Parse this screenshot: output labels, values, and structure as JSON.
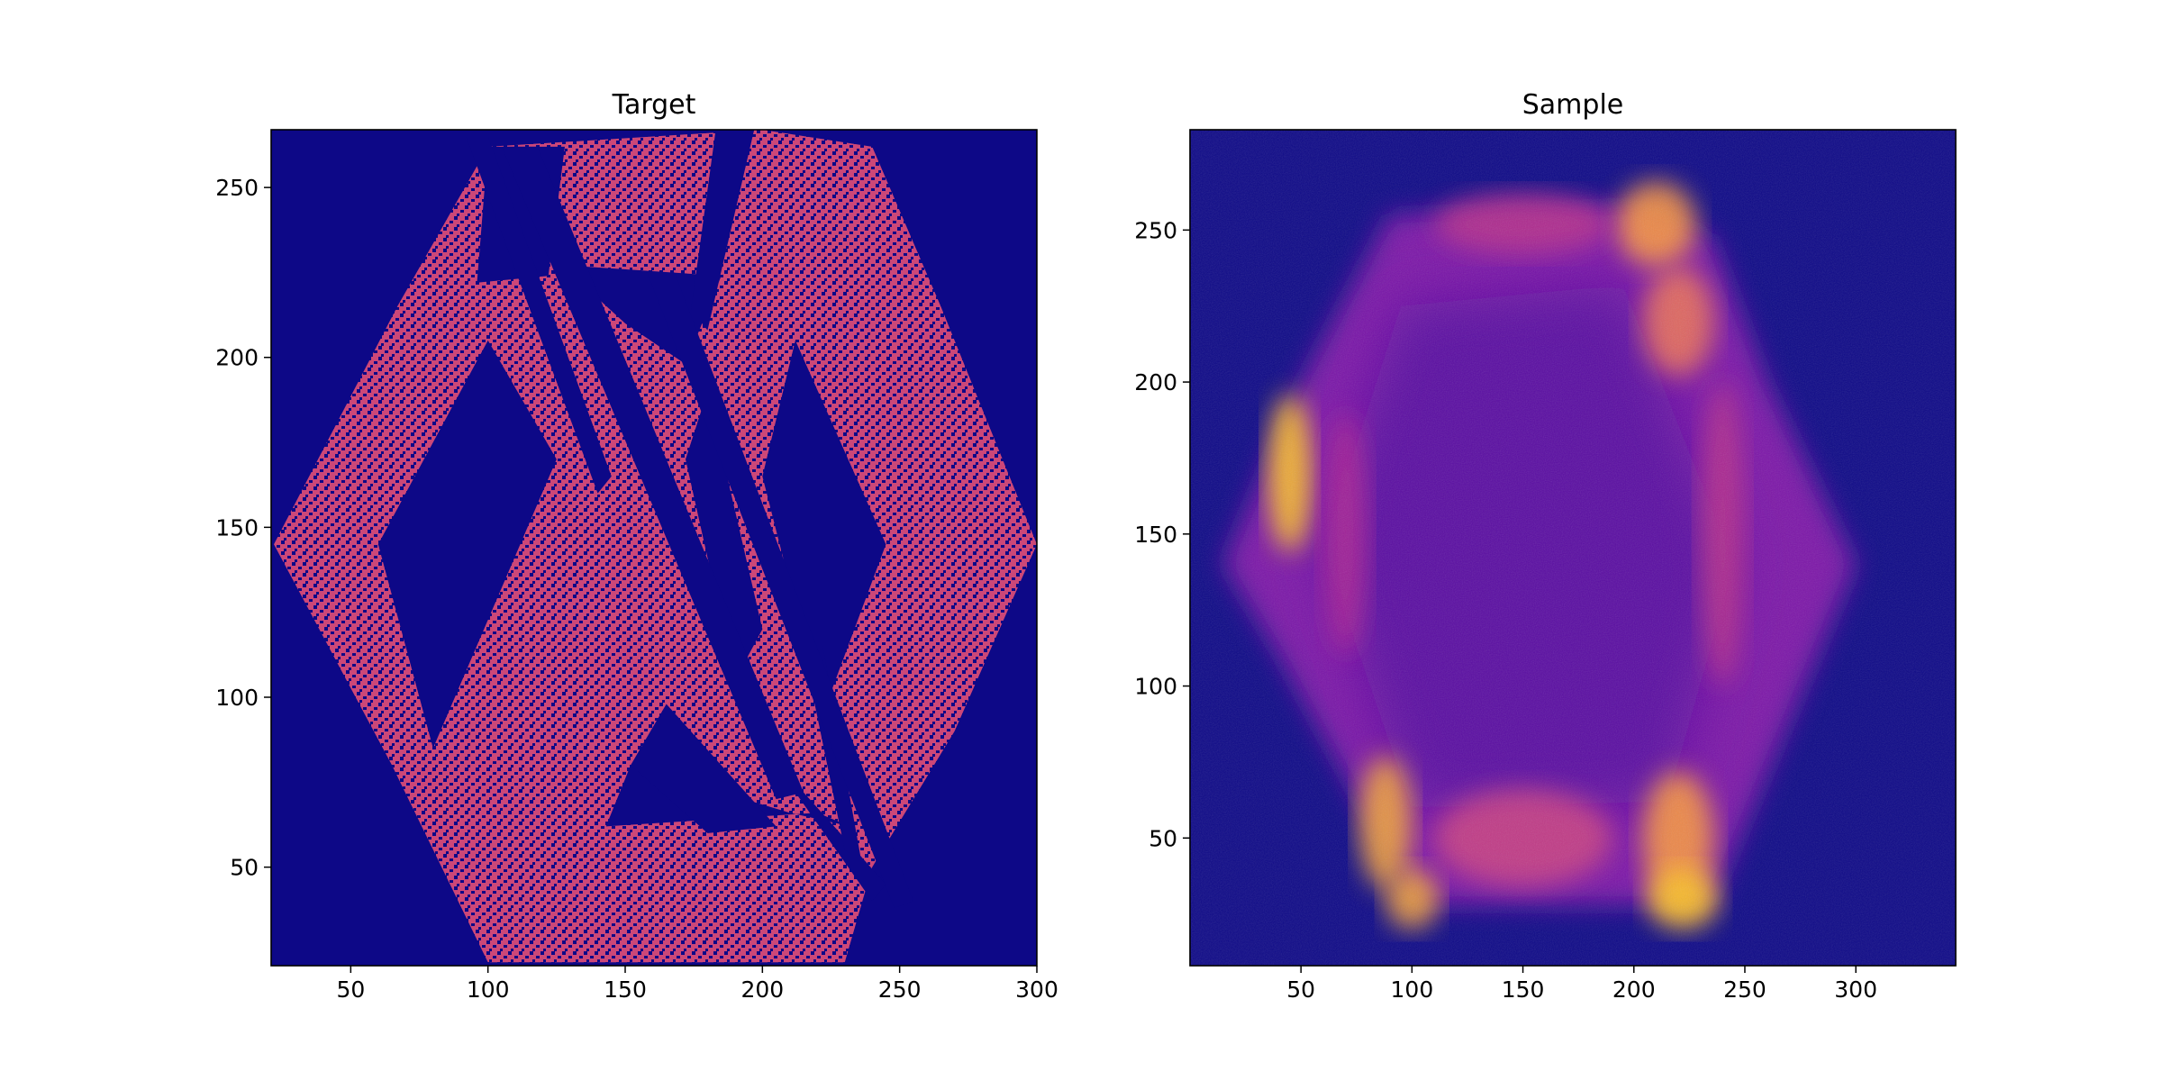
{
  "chart_data": [
    {
      "type": "heatmap",
      "title": "Target",
      "xlabel": "",
      "ylabel": "",
      "xlim": [
        21,
        300
      ],
      "ylim": [
        21,
        267
      ],
      "xticks": [
        50,
        100,
        150,
        200,
        250,
        300
      ],
      "yticks": [
        50,
        100,
        150,
        200,
        250
      ],
      "colormap": "plasma",
      "background_color": "#0d0887",
      "cell_color": "#cc4778",
      "description_shape": "hexagon of binary pixels with sheared diagonal cut-out stripes"
    },
    {
      "type": "heatmap",
      "title": "Sample",
      "xlabel": "",
      "ylabel": "",
      "xlim": [
        0,
        345
      ],
      "ylim": [
        8,
        283
      ],
      "xticks": [
        50,
        100,
        150,
        200,
        250,
        300
      ],
      "yticks": [
        50,
        100,
        150,
        200,
        250
      ],
      "colormap": "plasma",
      "background_color": "#0d0887",
      "peak_color": "#fdc328"
    }
  ]
}
